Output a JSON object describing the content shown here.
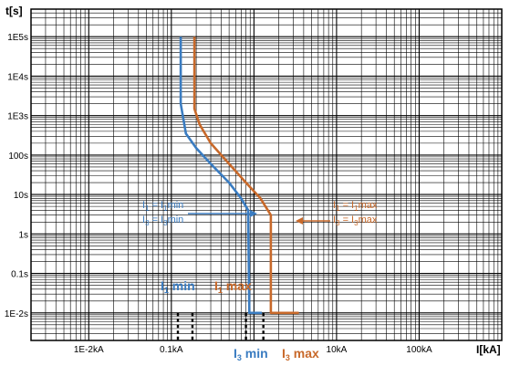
{
  "chart_data": {
    "type": "line",
    "xlabel": "I[kA]",
    "ylabel": "t[s]",
    "x_scale": "log",
    "y_scale": "log",
    "xlim": [
      0.002,
      1000
    ],
    "ylim": [
      0.002,
      500000
    ],
    "x_ticks": [
      {
        "value": 0.01,
        "label": "1E-2kA"
      },
      {
        "value": 0.1,
        "label": "0.1kA"
      },
      {
        "value": 10,
        "label": "10kA"
      },
      {
        "value": 100,
        "label": "100kA"
      }
    ],
    "y_ticks": [
      {
        "value": 100000,
        "label": "1E5s"
      },
      {
        "value": 10000,
        "label": "1E4s"
      },
      {
        "value": 1000,
        "label": "1E3s"
      },
      {
        "value": 100,
        "label": "100s"
      },
      {
        "value": 10,
        "label": "10s"
      },
      {
        "value": 1,
        "label": "1s"
      },
      {
        "value": 0.1,
        "label": "0.1s"
      },
      {
        "value": 0.01,
        "label": "1E-2s"
      }
    ],
    "grid": true,
    "series": [
      {
        "name": "",
        "color": "#3a7cc1",
        "points": [
          [
            0.13,
            100000
          ],
          [
            0.13,
            2000
          ],
          [
            0.15,
            350
          ],
          [
            0.2,
            150
          ],
          [
            0.3,
            60
          ],
          [
            0.5,
            20
          ],
          [
            0.7,
            8
          ],
          [
            0.85,
            4
          ],
          [
            0.88,
            0.01
          ],
          [
            1.25,
            0.01
          ]
        ]
      },
      {
        "name": "",
        "color": "#c8692a",
        "points": [
          [
            0.19,
            100000
          ],
          [
            0.19,
            1500
          ],
          [
            0.22,
            600
          ],
          [
            0.3,
            200
          ],
          [
            0.5,
            60
          ],
          [
            0.8,
            20
          ],
          [
            1.2,
            8
          ],
          [
            1.6,
            3
          ],
          [
            1.6,
            0.01
          ],
          [
            3.5,
            0.01
          ]
        ]
      }
    ],
    "vlines": [
      {
        "x": 0.12,
        "color": "#000000",
        "dashed": true
      },
      {
        "x": 0.18,
        "color": "#000000",
        "dashed": true
      },
      {
        "x": 0.8,
        "color": "#000000",
        "dashed": true
      },
      {
        "x": 1.3,
        "color": "#000000",
        "dashed": true
      }
    ],
    "annotations": {
      "blue_label1_a": "I",
      "blue_label1_sub_a": "1",
      "blue_label1_eq": " = I",
      "blue_label1_sub_b": "1",
      "blue_label1_b": "min",
      "blue_label2_a": "I",
      "blue_label2_sub_a": "3",
      "blue_label2_eq": " = I",
      "blue_label2_sub_b": "3",
      "blue_label2_b": "min",
      "orange_label1_a": "I",
      "orange_label1_sub_a": "1",
      "orange_label1_eq": " = I",
      "orange_label1_sub_b": "1",
      "orange_label1_b": "max",
      "orange_label2_a": "I",
      "orange_label2_sub_a": "3",
      "orange_label2_eq": " = I",
      "orange_label2_sub_b": "3",
      "orange_label2_b": "max",
      "i1min_main": "I",
      "i1min_sub": "1",
      "i1min_text": " min",
      "i1max_main": "I",
      "i1max_sub": "1",
      "i1max_text": " max",
      "i3min_main": "I",
      "i3min_sub": "3",
      "i3min_text": " min",
      "i3max_main": "I",
      "i3max_sub": "3",
      "i3max_text": " max"
    }
  }
}
